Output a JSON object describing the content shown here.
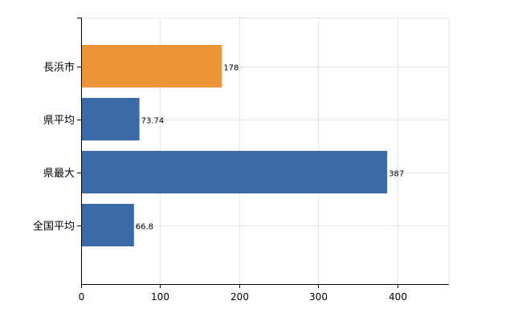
{
  "chart_data": {
    "type": "bar",
    "orientation": "horizontal",
    "categories": [
      "長浜市",
      "県平均",
      "県最大",
      "全国平均"
    ],
    "values": [
      178,
      73.74,
      387,
      66.8
    ],
    "value_labels": [
      "178",
      "73.74",
      "387",
      "66.8"
    ],
    "bar_colors": [
      "#f0943a",
      "#3a6aa8",
      "#3a6aa8",
      "#3a6aa8"
    ],
    "xlim": [
      0,
      465
    ],
    "xticks": [
      0,
      100,
      200,
      300,
      400
    ],
    "xtick_labels": [
      "0",
      "100",
      "200",
      "300",
      "400"
    ],
    "grid": true,
    "legend": "none"
  }
}
